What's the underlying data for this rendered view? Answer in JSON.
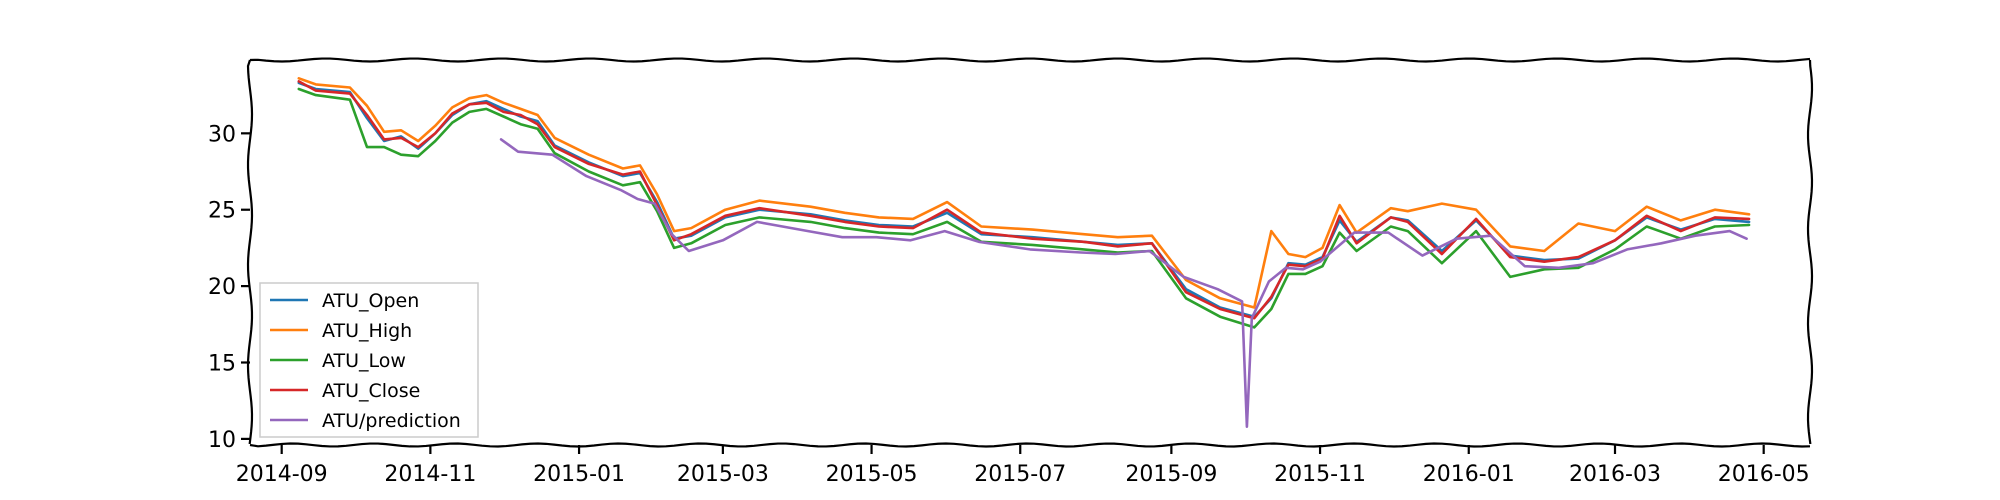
{
  "chart_data": {
    "type": "line",
    "title": "",
    "xlabel": "",
    "ylabel": "",
    "x_range": [
      "2014-08-19",
      "2016-05-20"
    ],
    "ylim": [
      9.6,
      34.8
    ],
    "grid": false,
    "legend_placement": "lower-left",
    "x_tick_labels": [
      "2014-09",
      "2014-11",
      "2015-01",
      "2015-03",
      "2015-05",
      "2015-07",
      "2015-09",
      "2015-11",
      "2016-01",
      "2016-03",
      "2016-05"
    ],
    "x_tick_dates": [
      "2014-09-01",
      "2014-11-01",
      "2015-01-01",
      "2015-03-01",
      "2015-05-01",
      "2015-07-01",
      "2015-09-01",
      "2015-11-01",
      "2016-01-01",
      "2016-03-01",
      "2016-05-01"
    ],
    "y_ticks": [
      10,
      15,
      20,
      25,
      30
    ],
    "series": [
      {
        "name": "ATU_Open",
        "color": "#1f77b4",
        "points": [
          [
            "2014-09-08",
            33.3
          ],
          [
            "2014-09-15",
            32.9
          ],
          [
            "2014-09-29",
            32.7
          ],
          [
            "2014-10-06",
            31.0
          ],
          [
            "2014-10-13",
            29.5
          ],
          [
            "2014-10-20",
            29.8
          ],
          [
            "2014-10-27",
            29.0
          ],
          [
            "2014-11-03",
            30.0
          ],
          [
            "2014-11-10",
            31.2
          ],
          [
            "2014-11-17",
            31.9
          ],
          [
            "2014-11-24",
            32.1
          ],
          [
            "2014-12-01",
            31.6
          ],
          [
            "2014-12-08",
            31.1
          ],
          [
            "2014-12-15",
            30.8
          ],
          [
            "2014-12-22",
            29.2
          ],
          [
            "2015-01-05",
            28.1
          ],
          [
            "2015-01-19",
            27.2
          ],
          [
            "2015-01-26",
            27.4
          ],
          [
            "2015-02-02",
            25.5
          ],
          [
            "2015-02-09",
            23.1
          ],
          [
            "2015-02-16",
            23.3
          ],
          [
            "2015-03-02",
            24.5
          ],
          [
            "2015-03-16",
            25.0
          ],
          [
            "2015-04-06",
            24.7
          ],
          [
            "2015-04-20",
            24.3
          ],
          [
            "2015-05-04",
            24.0
          ],
          [
            "2015-05-18",
            23.9
          ],
          [
            "2015-06-01",
            24.8
          ],
          [
            "2015-06-15",
            23.4
          ],
          [
            "2015-07-06",
            23.2
          ],
          [
            "2015-07-27",
            22.9
          ],
          [
            "2015-08-10",
            22.7
          ],
          [
            "2015-08-24",
            22.8
          ],
          [
            "2015-09-07",
            19.8
          ],
          [
            "2015-09-21",
            18.6
          ],
          [
            "2015-10-05",
            18.0
          ],
          [
            "2015-10-12",
            19.2
          ],
          [
            "2015-10-19",
            21.5
          ],
          [
            "2015-10-26",
            21.4
          ],
          [
            "2015-11-02",
            21.9
          ],
          [
            "2015-11-09",
            24.3
          ],
          [
            "2015-11-16",
            22.9
          ],
          [
            "2015-11-30",
            24.5
          ],
          [
            "2015-12-07",
            24.3
          ],
          [
            "2015-12-21",
            22.3
          ],
          [
            "2016-01-04",
            24.3
          ],
          [
            "2016-01-18",
            22.0
          ],
          [
            "2016-02-01",
            21.7
          ],
          [
            "2016-02-15",
            21.8
          ],
          [
            "2016-03-01",
            23.0
          ],
          [
            "2016-03-14",
            24.5
          ],
          [
            "2016-03-28",
            23.7
          ],
          [
            "2016-04-11",
            24.4
          ],
          [
            "2016-04-25",
            24.2
          ]
        ]
      },
      {
        "name": "ATU_High",
        "color": "#ff7f0e",
        "points": [
          [
            "2014-09-08",
            33.6
          ],
          [
            "2014-09-15",
            33.2
          ],
          [
            "2014-09-29",
            33.0
          ],
          [
            "2014-10-06",
            31.8
          ],
          [
            "2014-10-13",
            30.1
          ],
          [
            "2014-10-20",
            30.2
          ],
          [
            "2014-10-27",
            29.5
          ],
          [
            "2014-11-03",
            30.5
          ],
          [
            "2014-11-10",
            31.7
          ],
          [
            "2014-11-17",
            32.3
          ],
          [
            "2014-11-24",
            32.5
          ],
          [
            "2014-12-01",
            32.0
          ],
          [
            "2014-12-08",
            31.6
          ],
          [
            "2014-12-15",
            31.2
          ],
          [
            "2014-12-22",
            29.7
          ],
          [
            "2015-01-05",
            28.6
          ],
          [
            "2015-01-19",
            27.7
          ],
          [
            "2015-01-26",
            27.9
          ],
          [
            "2015-02-02",
            26.0
          ],
          [
            "2015-02-09",
            23.6
          ],
          [
            "2015-02-16",
            23.8
          ],
          [
            "2015-03-02",
            25.0
          ],
          [
            "2015-03-16",
            25.6
          ],
          [
            "2015-04-06",
            25.2
          ],
          [
            "2015-04-20",
            24.8
          ],
          [
            "2015-05-04",
            24.5
          ],
          [
            "2015-05-18",
            24.4
          ],
          [
            "2015-06-01",
            25.5
          ],
          [
            "2015-06-15",
            23.9
          ],
          [
            "2015-07-06",
            23.7
          ],
          [
            "2015-07-27",
            23.4
          ],
          [
            "2015-08-10",
            23.2
          ],
          [
            "2015-08-24",
            23.3
          ],
          [
            "2015-09-07",
            20.4
          ],
          [
            "2015-09-21",
            19.2
          ],
          [
            "2015-10-05",
            18.6
          ],
          [
            "2015-10-12",
            23.6
          ],
          [
            "2015-10-19",
            22.1
          ],
          [
            "2015-10-26",
            21.9
          ],
          [
            "2015-11-02",
            22.5
          ],
          [
            "2015-11-09",
            25.3
          ],
          [
            "2015-11-16",
            23.5
          ],
          [
            "2015-11-30",
            25.1
          ],
          [
            "2015-12-07",
            24.9
          ],
          [
            "2015-12-21",
            25.4
          ],
          [
            "2016-01-04",
            25.0
          ],
          [
            "2016-01-18",
            22.6
          ],
          [
            "2016-02-01",
            22.3
          ],
          [
            "2016-02-15",
            24.1
          ],
          [
            "2016-03-01",
            23.6
          ],
          [
            "2016-03-14",
            25.2
          ],
          [
            "2016-03-28",
            24.3
          ],
          [
            "2016-04-11",
            25.0
          ],
          [
            "2016-04-25",
            24.7
          ]
        ]
      },
      {
        "name": "ATU_Low",
        "color": "#2ca02c",
        "points": [
          [
            "2014-09-08",
            32.9
          ],
          [
            "2014-09-15",
            32.5
          ],
          [
            "2014-09-29",
            32.2
          ],
          [
            "2014-10-06",
            29.1
          ],
          [
            "2014-10-13",
            29.1
          ],
          [
            "2014-10-20",
            28.6
          ],
          [
            "2014-10-27",
            28.5
          ],
          [
            "2014-11-03",
            29.5
          ],
          [
            "2014-11-10",
            30.7
          ],
          [
            "2014-11-17",
            31.4
          ],
          [
            "2014-11-24",
            31.6
          ],
          [
            "2014-12-01",
            31.1
          ],
          [
            "2014-12-08",
            30.6
          ],
          [
            "2014-12-15",
            30.3
          ],
          [
            "2014-12-22",
            28.7
          ],
          [
            "2015-01-05",
            27.5
          ],
          [
            "2015-01-19",
            26.6
          ],
          [
            "2015-01-26",
            26.8
          ],
          [
            "2015-02-02",
            24.9
          ],
          [
            "2015-02-09",
            22.5
          ],
          [
            "2015-02-16",
            22.8
          ],
          [
            "2015-03-02",
            24.0
          ],
          [
            "2015-03-16",
            24.5
          ],
          [
            "2015-04-06",
            24.2
          ],
          [
            "2015-04-20",
            23.8
          ],
          [
            "2015-05-04",
            23.5
          ],
          [
            "2015-05-18",
            23.4
          ],
          [
            "2015-06-01",
            24.2
          ],
          [
            "2015-06-15",
            22.9
          ],
          [
            "2015-07-06",
            22.7
          ],
          [
            "2015-07-27",
            22.4
          ],
          [
            "2015-08-10",
            22.2
          ],
          [
            "2015-08-24",
            22.3
          ],
          [
            "2015-09-07",
            19.2
          ],
          [
            "2015-09-21",
            18.0
          ],
          [
            "2015-10-05",
            17.3
          ],
          [
            "2015-10-12",
            18.5
          ],
          [
            "2015-10-19",
            20.8
          ],
          [
            "2015-10-26",
            20.8
          ],
          [
            "2015-11-02",
            21.3
          ],
          [
            "2015-11-09",
            23.5
          ],
          [
            "2015-11-16",
            22.3
          ],
          [
            "2015-11-30",
            23.9
          ],
          [
            "2015-12-07",
            23.6
          ],
          [
            "2015-12-21",
            21.5
          ],
          [
            "2016-01-04",
            23.6
          ],
          [
            "2016-01-18",
            20.6
          ],
          [
            "2016-02-01",
            21.1
          ],
          [
            "2016-02-15",
            21.2
          ],
          [
            "2016-03-01",
            22.4
          ],
          [
            "2016-03-14",
            23.9
          ],
          [
            "2016-03-28",
            23.1
          ],
          [
            "2016-04-11",
            23.9
          ],
          [
            "2016-04-25",
            24.0
          ]
        ]
      },
      {
        "name": "ATU_Close",
        "color": "#d62728",
        "points": [
          [
            "2014-09-08",
            33.4
          ],
          [
            "2014-09-15",
            32.8
          ],
          [
            "2014-09-29",
            32.6
          ],
          [
            "2014-10-06",
            31.2
          ],
          [
            "2014-10-13",
            29.6
          ],
          [
            "2014-10-20",
            29.7
          ],
          [
            "2014-10-27",
            29.1
          ],
          [
            "2014-11-03",
            30.0
          ],
          [
            "2014-11-10",
            31.3
          ],
          [
            "2014-11-17",
            31.9
          ],
          [
            "2014-11-24",
            32.0
          ],
          [
            "2014-12-01",
            31.4
          ],
          [
            "2014-12-08",
            31.2
          ],
          [
            "2014-12-15",
            30.6
          ],
          [
            "2014-12-22",
            29.1
          ],
          [
            "2015-01-05",
            28.0
          ],
          [
            "2015-01-19",
            27.3
          ],
          [
            "2015-01-26",
            27.5
          ],
          [
            "2015-02-02",
            25.3
          ],
          [
            "2015-02-09",
            23.0
          ],
          [
            "2015-02-16",
            23.4
          ],
          [
            "2015-03-02",
            24.6
          ],
          [
            "2015-03-16",
            25.1
          ],
          [
            "2015-04-06",
            24.6
          ],
          [
            "2015-04-20",
            24.2
          ],
          [
            "2015-05-04",
            23.9
          ],
          [
            "2015-05-18",
            23.8
          ],
          [
            "2015-06-01",
            25.0
          ],
          [
            "2015-06-15",
            23.5
          ],
          [
            "2015-07-06",
            23.1
          ],
          [
            "2015-07-27",
            22.9
          ],
          [
            "2015-08-10",
            22.6
          ],
          [
            "2015-08-24",
            22.8
          ],
          [
            "2015-09-07",
            19.6
          ],
          [
            "2015-09-21",
            18.5
          ],
          [
            "2015-10-05",
            17.9
          ],
          [
            "2015-10-12",
            19.3
          ],
          [
            "2015-10-19",
            21.4
          ],
          [
            "2015-10-26",
            21.3
          ],
          [
            "2015-11-02",
            21.8
          ],
          [
            "2015-11-09",
            24.6
          ],
          [
            "2015-11-16",
            22.8
          ],
          [
            "2015-11-30",
            24.5
          ],
          [
            "2015-12-07",
            24.2
          ],
          [
            "2015-12-21",
            22.1
          ],
          [
            "2016-01-04",
            24.4
          ],
          [
            "2016-01-18",
            21.9
          ],
          [
            "2016-02-01",
            21.6
          ],
          [
            "2016-02-15",
            21.9
          ],
          [
            "2016-03-01",
            23.0
          ],
          [
            "2016-03-14",
            24.6
          ],
          [
            "2016-03-28",
            23.6
          ],
          [
            "2016-04-11",
            24.5
          ],
          [
            "2016-04-25",
            24.4
          ]
        ]
      },
      {
        "name": "ATU/prediction",
        "color": "#9467bd",
        "points": [
          [
            "2014-11-30",
            29.6
          ],
          [
            "2014-12-07",
            28.8
          ],
          [
            "2014-12-21",
            28.6
          ],
          [
            "2015-01-04",
            27.2
          ],
          [
            "2015-01-18",
            26.3
          ],
          [
            "2015-01-25",
            25.7
          ],
          [
            "2015-02-01",
            25.4
          ],
          [
            "2015-02-08",
            23.4
          ],
          [
            "2015-02-15",
            22.3
          ],
          [
            "2015-03-01",
            23.0
          ],
          [
            "2015-03-15",
            24.2
          ],
          [
            "2015-04-05",
            23.6
          ],
          [
            "2015-04-19",
            23.2
          ],
          [
            "2015-05-03",
            23.2
          ],
          [
            "2015-05-17",
            23.0
          ],
          [
            "2015-05-31",
            23.6
          ],
          [
            "2015-06-14",
            22.9
          ],
          [
            "2015-07-05",
            22.4
          ],
          [
            "2015-07-26",
            22.2
          ],
          [
            "2015-08-09",
            22.1
          ],
          [
            "2015-08-23",
            22.3
          ],
          [
            "2015-09-06",
            20.6
          ],
          [
            "2015-09-20",
            19.8
          ],
          [
            "2015-09-30",
            19.0
          ],
          [
            "2015-10-02",
            10.8
          ],
          [
            "2015-10-04",
            17.9
          ],
          [
            "2015-10-11",
            20.3
          ],
          [
            "2015-10-18",
            21.2
          ],
          [
            "2015-10-25",
            21.1
          ],
          [
            "2015-11-01",
            21.6
          ],
          [
            "2015-11-15",
            23.5
          ],
          [
            "2015-11-29",
            23.5
          ],
          [
            "2015-12-13",
            22.0
          ],
          [
            "2015-12-27",
            23.1
          ],
          [
            "2016-01-10",
            23.3
          ],
          [
            "2016-01-24",
            21.3
          ],
          [
            "2016-02-07",
            21.2
          ],
          [
            "2016-02-21",
            21.5
          ],
          [
            "2016-03-06",
            22.4
          ],
          [
            "2016-03-20",
            22.8
          ],
          [
            "2016-04-03",
            23.3
          ],
          [
            "2016-04-17",
            23.6
          ],
          [
            "2016-04-24",
            23.1
          ]
        ]
      }
    ]
  }
}
